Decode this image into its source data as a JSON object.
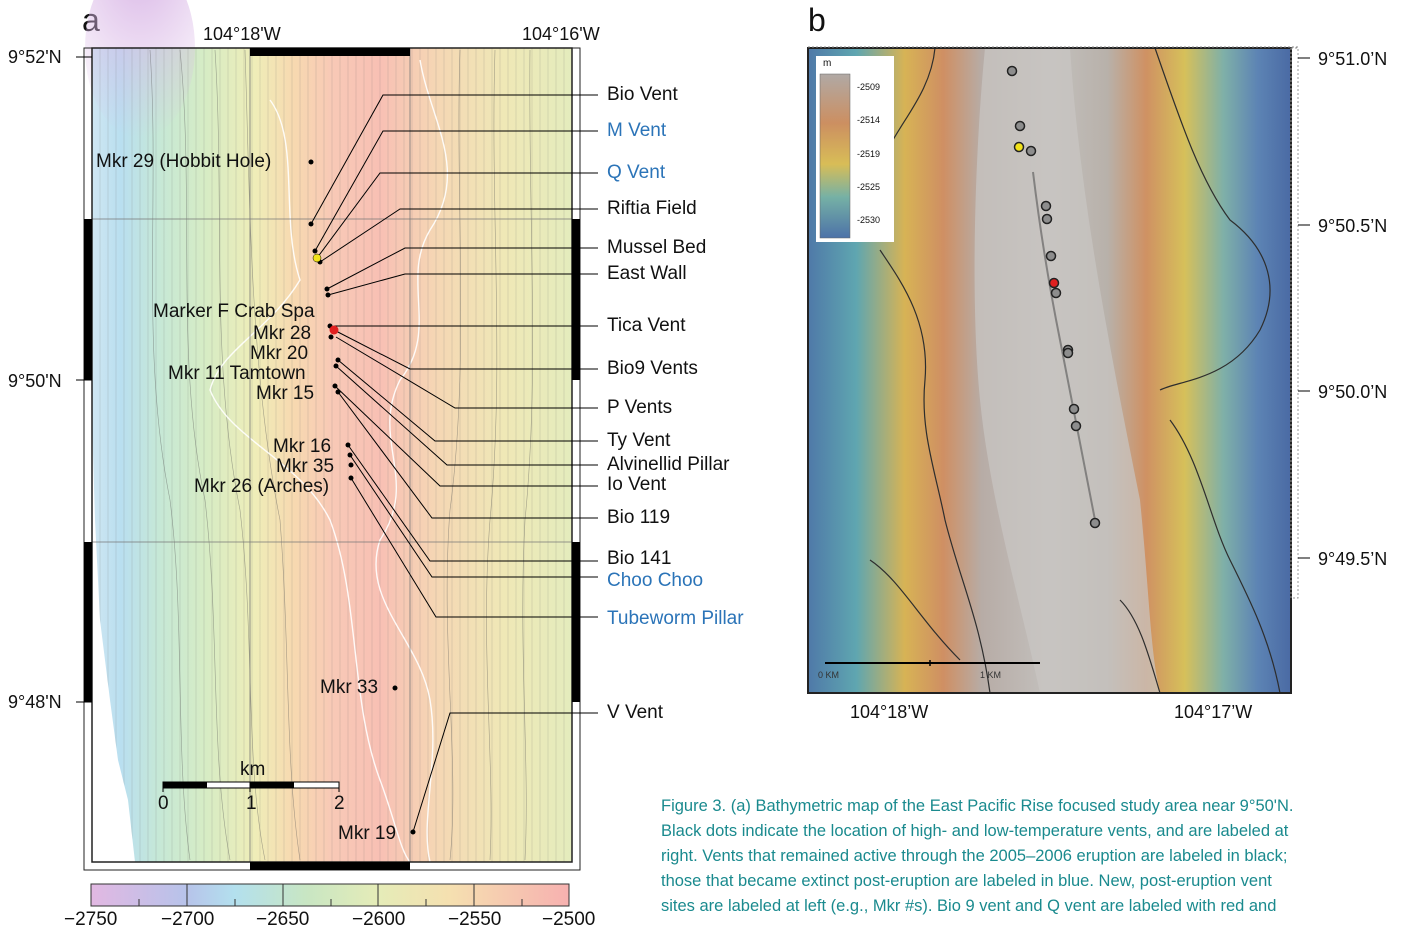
{
  "panel_a": {
    "letter": "a",
    "top_lon_labels": [
      "104°18'W",
      "104°16'W"
    ],
    "left_lat_labels": [
      "9°52'N",
      "9°50'N",
      "9°48'N"
    ],
    "right_labels": [
      {
        "text": "Bio Vent",
        "color": "black"
      },
      {
        "text": "M Vent",
        "color": "blue"
      },
      {
        "text": "Q Vent",
        "color": "blue"
      },
      {
        "text": "Riftia Field",
        "color": "black"
      },
      {
        "text": "Mussel Bed",
        "color": "black"
      },
      {
        "text": "East Wall",
        "color": "black"
      },
      {
        "text": "Tica Vent",
        "color": "black"
      },
      {
        "text": "Bio9 Vents",
        "color": "black"
      },
      {
        "text": "P Vents",
        "color": "black"
      },
      {
        "text": "Ty Vent",
        "color": "black"
      },
      {
        "text": "Alvinellid Pillar",
        "color": "black"
      },
      {
        "text": "Io Vent",
        "color": "black"
      },
      {
        "text": "Bio 119",
        "color": "black"
      },
      {
        "text": "Bio 141",
        "color": "black"
      },
      {
        "text": "Choo Choo",
        "color": "blue"
      },
      {
        "text": "Tubeworm Pillar",
        "color": "blue"
      },
      {
        "text": "V Vent",
        "color": "black"
      }
    ],
    "left_labels": [
      "Mkr 29 (Hobbit Hole)",
      "Marker F Crab Spa",
      "Mkr 28",
      "Mkr 20",
      "Mkr 11 Tamtown",
      "Mkr 15",
      "Mkr 16",
      "Mkr 35",
      "Mkr 26 (Arches)",
      "Mkr 33",
      "Mkr 19"
    ],
    "scale": {
      "unit": "km",
      "ticks": [
        "0",
        "1",
        "2"
      ]
    },
    "colorbar": {
      "ticks": [
        "−2750",
        "−2700",
        "−2650",
        "−2600",
        "−2550",
        "−2500"
      ]
    }
  },
  "panel_b": {
    "letter": "b",
    "right_lat_labels": [
      "9°51.0’N",
      "9°50.5’N",
      "9°50.0’N",
      "9°49.5’N"
    ],
    "bottom_lon_labels": [
      "104°18’W",
      "104°17’W"
    ],
    "legend": {
      "unit": "m",
      "values": [
        "-2509",
        "-2514",
        "-2519",
        "-2525",
        "-2530"
      ]
    },
    "scale": {
      "left": "0 KM",
      "right": "1 KM"
    }
  },
  "caption": [
    "Figure 3. (a) Bathymetric map of the East Pacific Rise focused study area near 9°50'N.",
    "Black dots indicate the location of high- and low-temperature vents, and are labeled at",
    "right. Vents that remained active through the 2005–2006 eruption are labeled in black;",
    "those that became extinct post-eruption are labeled in blue. New, post-eruption vent",
    "sites are labeled at left (e.g., Mkr #s). Bio 9 vent and Q vent are labeled with red and"
  ],
  "colors": {
    "blue_label": "#2b74b8",
    "caption": "#1a8a8e",
    "bio9_marker": "#e02020",
    "qvent_marker": "#f2e21a"
  }
}
